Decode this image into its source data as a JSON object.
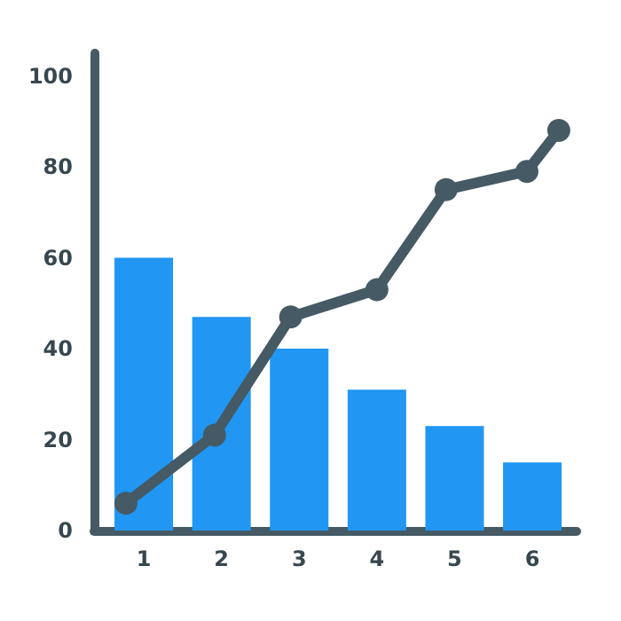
{
  "chart_data": {
    "type": "bar",
    "x": [
      1,
      2,
      3,
      4,
      5,
      6
    ],
    "xlim": [
      0.36,
      6.57
    ],
    "xticks": [
      1,
      2,
      3,
      4,
      5,
      6
    ],
    "ylim": [
      0,
      105
    ],
    "yticks": [
      0,
      20,
      40,
      60,
      80,
      100
    ],
    "grid": false,
    "series": [
      {
        "color": "#2196f3",
        "values": [
          60,
          47,
          40,
          31,
          23,
          15
        ]
      },
      {
        "type": "line",
        "color": "#455a64",
        "marker": "circle",
        "x": [
          0.77,
          1.91,
          2.89,
          4.0,
          4.89,
          5.93,
          6.34
        ],
        "values": [
          6,
          21,
          47,
          53,
          75,
          79,
          88
        ]
      }
    ]
  }
}
